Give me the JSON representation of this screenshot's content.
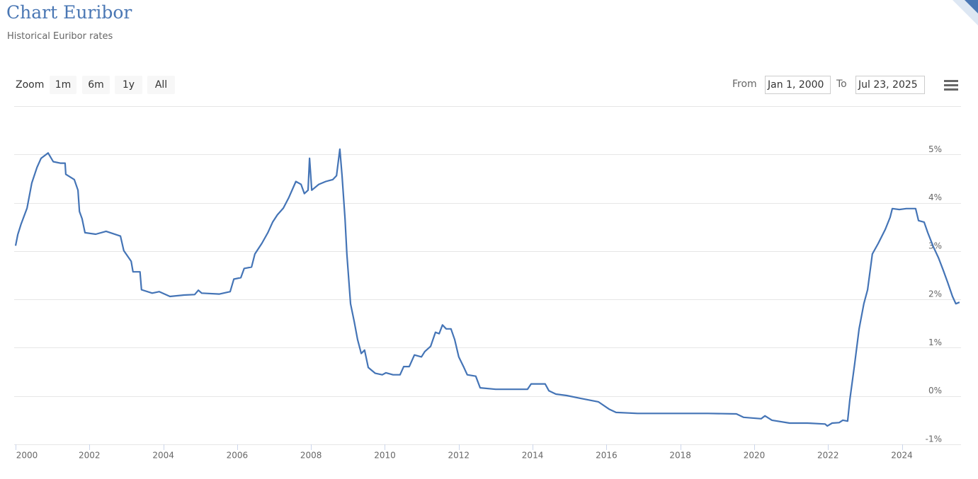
{
  "chart_data": {
    "type": "line",
    "title": "Chart Euribor",
    "subtitle": "Historical Euribor rates",
    "range_selector": {
      "zoom_label": "Zoom",
      "buttons": [
        "1m",
        "6m",
        "1y",
        "All"
      ],
      "from_label": "From",
      "from": "Jan 1, 2000",
      "to_label": "To",
      "to": "Jul 23, 2025"
    },
    "color": "#4474b6",
    "grid": true,
    "xlim": [
      2000,
      2025.6
    ],
    "xticks": [
      2000,
      2002,
      2004,
      2006,
      2008,
      2010,
      2012,
      2014,
      2016,
      2018,
      2020,
      2022,
      2024
    ],
    "ylim": [
      -1,
      6
    ],
    "yticks": [
      {
        "value": -1,
        "label": "-1%"
      },
      {
        "value": 0,
        "label": "0%"
      },
      {
        "value": 1,
        "label": "1%"
      },
      {
        "value": 2,
        "label": "2%"
      },
      {
        "value": 3,
        "label": "3%"
      },
      {
        "value": 4,
        "label": "4%"
      },
      {
        "value": 5,
        "label": "5%"
      }
    ],
    "x": [
      2000.0,
      2000.06,
      2000.15,
      2000.31,
      2000.44,
      2000.58,
      2000.69,
      2000.88,
      2001.02,
      2001.21,
      2001.34,
      2001.36,
      2001.59,
      2001.69,
      2001.73,
      2001.8,
      2001.88,
      2002.17,
      2002.45,
      2002.84,
      2002.93,
      2003.13,
      2003.18,
      2003.37,
      2003.41,
      2003.7,
      2003.89,
      2004.18,
      2004.56,
      2004.85,
      2004.95,
      2005.04,
      2005.52,
      2005.81,
      2005.91,
      2006.1,
      2006.19,
      2006.39,
      2006.48,
      2006.67,
      2006.83,
      2006.96,
      2007.09,
      2007.25,
      2007.4,
      2007.59,
      2007.73,
      2007.82,
      2007.92,
      2007.96,
      2008.02,
      2008.21,
      2008.4,
      2008.59,
      2008.69,
      2008.78,
      2008.84,
      2008.92,
      2008.97,
      2009.07,
      2009.17,
      2009.26,
      2009.36,
      2009.45,
      2009.55,
      2009.74,
      2009.93,
      2010.03,
      2010.22,
      2010.41,
      2010.51,
      2010.66,
      2010.8,
      2010.99,
      2011.08,
      2011.24,
      2011.37,
      2011.47,
      2011.56,
      2011.66,
      2011.79,
      2011.89,
      2012.0,
      2012.14,
      2012.23,
      2012.46,
      2012.58,
      2013.0,
      2013.86,
      2013.96,
      2014.34,
      2014.44,
      2014.63,
      2014.92,
      2015.3,
      2015.78,
      2016.07,
      2016.26,
      2016.84,
      2018.75,
      2019.52,
      2019.71,
      2020.19,
      2020.29,
      2020.48,
      2020.96,
      2021.44,
      2021.92,
      2021.98,
      2022.11,
      2022.3,
      2022.4,
      2022.53,
      2022.59,
      2022.72,
      2022.84,
      2022.97,
      2023.07,
      2023.2,
      2023.36,
      2023.55,
      2023.68,
      2023.74,
      2023.93,
      2024.12,
      2024.37,
      2024.45,
      2024.6,
      2024.7,
      2024.85,
      2024.99,
      2025.12,
      2025.24,
      2025.37,
      2025.46,
      2025.56
    ],
    "values": [
      3.11,
      3.34,
      3.56,
      3.89,
      4.41,
      4.73,
      4.92,
      5.03,
      4.85,
      4.82,
      4.82,
      4.59,
      4.48,
      4.26,
      3.82,
      3.67,
      3.38,
      3.35,
      3.41,
      3.31,
      3.01,
      2.79,
      2.57,
      2.57,
      2.2,
      2.13,
      2.16,
      2.06,
      2.09,
      2.1,
      2.19,
      2.13,
      2.11,
      2.16,
      2.42,
      2.45,
      2.64,
      2.67,
      2.94,
      3.16,
      3.38,
      3.6,
      3.75,
      3.89,
      4.11,
      4.44,
      4.38,
      4.19,
      4.26,
      4.92,
      4.26,
      4.38,
      4.44,
      4.48,
      4.56,
      5.11,
      4.56,
      3.67,
      2.94,
      1.91,
      1.54,
      1.17,
      0.88,
      0.95,
      0.59,
      0.47,
      0.44,
      0.48,
      0.44,
      0.44,
      0.61,
      0.61,
      0.85,
      0.81,
      0.92,
      1.03,
      1.32,
      1.29,
      1.47,
      1.39,
      1.39,
      1.17,
      0.81,
      0.59,
      0.44,
      0.41,
      0.17,
      0.14,
      0.14,
      0.25,
      0.25,
      0.11,
      0.04,
      0.01,
      -0.05,
      -0.12,
      -0.27,
      -0.34,
      -0.36,
      -0.36,
      -0.37,
      -0.44,
      -0.47,
      -0.41,
      -0.5,
      -0.56,
      -0.56,
      -0.58,
      -0.62,
      -0.56,
      -0.55,
      -0.5,
      -0.52,
      -0.08,
      0.66,
      1.39,
      1.91,
      2.2,
      2.94,
      3.16,
      3.45,
      3.7,
      3.88,
      3.86,
      3.88,
      3.88,
      3.63,
      3.6,
      3.38,
      3.09,
      2.86,
      2.6,
      2.35,
      2.06,
      1.91,
      1.94
    ]
  }
}
